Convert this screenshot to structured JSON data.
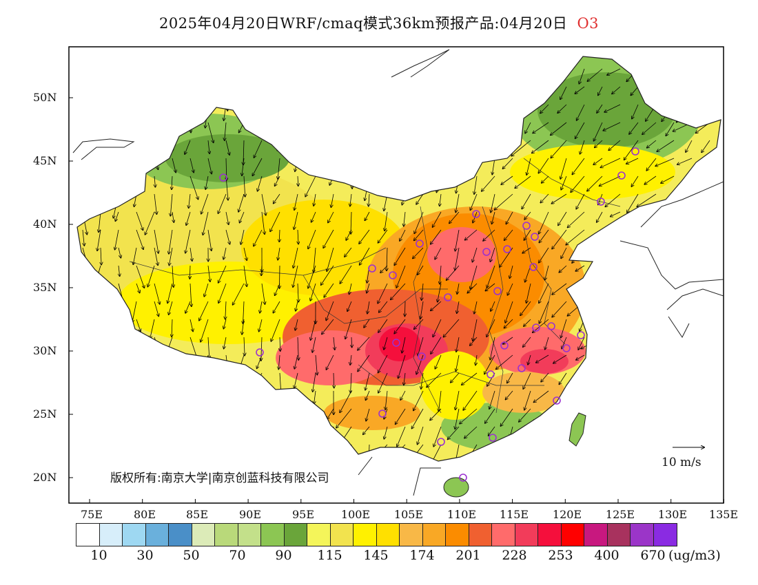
{
  "title": {
    "text": "2025年04月20日WRF/cmaq模式36km预报产品:04月20日",
    "species": "O3"
  },
  "map": {
    "region": "China",
    "lon_range": [
      73,
      135
    ],
    "lat_range": [
      18,
      54
    ],
    "lon_ticks": [
      "75E",
      "80E",
      "85E",
      "90E",
      "95E",
      "100E",
      "105E",
      "110E",
      "115E",
      "120E",
      "125E",
      "130E",
      "135E"
    ],
    "lat_ticks": [
      "20N",
      "25N",
      "30N",
      "35N",
      "40N",
      "45N",
      "50N"
    ],
    "wind_vectors": true,
    "station_marker_color": "#9b30d0"
  },
  "reference_vector": {
    "label": "10 m/s"
  },
  "copyright": "版权所有:南京大学|南京创蓝科技有限公司",
  "colorbar": {
    "colors": [
      "#ffffff",
      "#d7eefa",
      "#9ed8f2",
      "#6ab0dc",
      "#4a8fc8",
      "#dcebb8",
      "#b9d97a",
      "#c3e08a",
      "#8cc653",
      "#6aa53a",
      "#f4f55a",
      "#f2e34e",
      "#fff100",
      "#ffe000",
      "#f8b847",
      "#f9a825",
      "#fb8c00",
      "#f06030",
      "#ff6b6b",
      "#f23c5a",
      "#f50f3c",
      "#ff0000",
      "#c8187f",
      "#a8325e",
      "#9b35c8",
      "#8a2be2"
    ],
    "labels": [
      "10",
      "30",
      "50",
      "70",
      "90",
      "115",
      "145",
      "174",
      "201",
      "228",
      "253",
      "400",
      "670"
    ],
    "unit": "(ug/m3)"
  }
}
